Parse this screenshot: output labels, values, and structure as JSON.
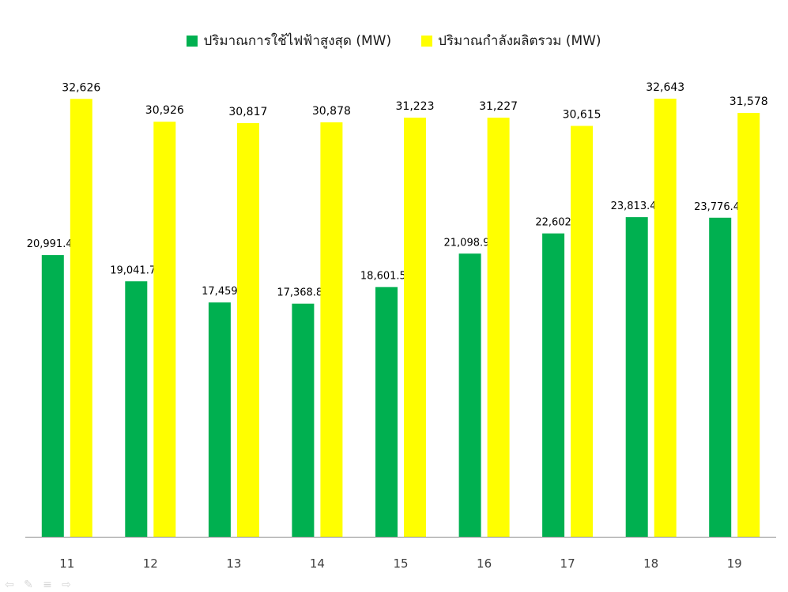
{
  "chart_data": {
    "type": "bar",
    "categories": [
      "11",
      "12",
      "13",
      "14",
      "15",
      "16",
      "17",
      "18",
      "19"
    ],
    "series": [
      {
        "name": "ปริมาณการใช้ไฟฟ้าสูงสุด (MW)",
        "color": "#00b050",
        "values": [
          20991.4,
          19041.7,
          17459,
          17368.8,
          18601.5,
          21098.9,
          22602,
          23813.4,
          23776.4
        ],
        "labels": [
          "20,991.40",
          "19,041.70",
          "17,459",
          "17,368.80",
          "18,601.50",
          "21,098.90",
          "22,602",
          "23,813.40",
          "23,776.40"
        ]
      },
      {
        "name": "ปริมาณกำลังผลิตรวม (MW)",
        "color": "#ffff00",
        "values": [
          32626,
          30926,
          30817,
          30878,
          31223,
          31227,
          30615,
          32643,
          31578
        ],
        "labels": [
          "32,626",
          "30,926",
          "30,817",
          "30,878",
          "31,223",
          "31,227",
          "30,615",
          "32,643",
          "31,578"
        ]
      }
    ],
    "ylim": [
      0,
      37500
    ],
    "grid": false,
    "legend_position": "top-center"
  },
  "legend": {
    "series1_text": "ปริมาณการใช้ไฟฟ้าสูงสุด (MW)",
    "series2_text": "ปริมาณกำลังผลิตรวม (MW)"
  },
  "controls": {
    "prev_icon": "arrow-left-icon",
    "pen_icon": "pen-icon",
    "menu_icon": "menu-icon",
    "next_icon": "arrow-right-icon"
  }
}
